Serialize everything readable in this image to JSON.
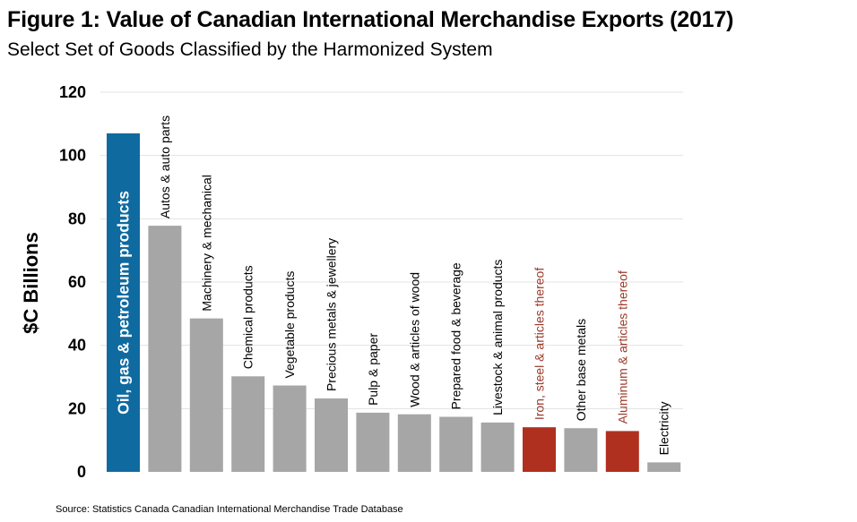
{
  "title": "Figure 1: Value of Canadian International Merchandise Exports (2017)",
  "subtitle": "Select Set of Goods Classified by the Harmonized System",
  "source": "Source: Statistics Canada Canadian International Merchandise Trade Database",
  "colors": {
    "highlight": "#0f6aa0",
    "default": "#a6a6a6",
    "metal": "#b0301f",
    "metal_label": "#9b3a2a",
    "grid": "#e3e3e3"
  },
  "chart_data": {
    "type": "bar",
    "title": "Figure 1: Value of Canadian International Merchandise Exports (2017)",
    "subtitle": "Select Set of Goods Classified by the Harmonized System",
    "xlabel": "",
    "ylabel": "$C Billions",
    "ylim": [
      0,
      120
    ],
    "yticks": [
      0,
      20,
      40,
      60,
      80,
      100,
      120
    ],
    "grid": true,
    "categories": [
      "Oil, gas & petroleum products",
      "Autos & auto parts",
      "Machinery & mechanical",
      "Chemical products",
      "Vegetable products",
      "Precious metals & jewellery",
      "Pulp & paper",
      "Wood & articles of wood",
      "Prepared food & beverage",
      "Livestock & animal products",
      "Iron, steel & articles thereof",
      "Other base metals",
      "Aluminum  & articles thereof",
      "Electricity"
    ],
    "values": [
      107,
      77.8,
      48.5,
      30.2,
      27.3,
      23.2,
      18.7,
      18.2,
      17.4,
      15.6,
      14.1,
      13.8,
      12.9,
      3.0
    ],
    "bar_color_keys": [
      "highlight",
      "default",
      "default",
      "default",
      "default",
      "default",
      "default",
      "default",
      "default",
      "default",
      "metal",
      "default",
      "metal",
      "default"
    ]
  }
}
